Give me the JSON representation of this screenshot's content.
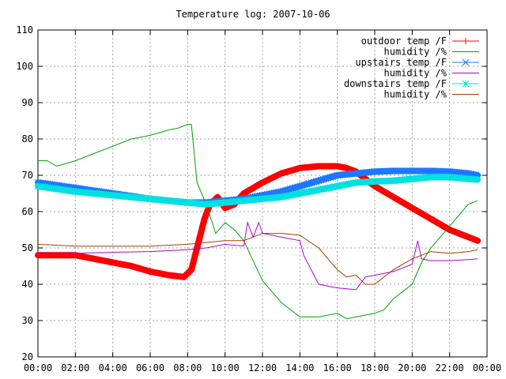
{
  "chart_data": {
    "type": "line",
    "title": "Temperature log: 2007-10-06",
    "xlabel": "",
    "ylabel": "",
    "ylim": [
      20,
      110
    ],
    "xlim": [
      0,
      24
    ],
    "y_ticks": [
      20,
      30,
      40,
      50,
      60,
      70,
      80,
      90,
      100,
      110
    ],
    "x_ticks": [
      "00:00",
      "02:00",
      "04:00",
      "06:00",
      "08:00",
      "10:00",
      "12:00",
      "14:00",
      "16:00",
      "18:00",
      "20:00",
      "22:00",
      "00:00"
    ],
    "grid": true,
    "legend_position": "top-right",
    "series": [
      {
        "name": "outdoor temp /F",
        "color": "#ff0000",
        "marker": "plus",
        "points": [
          [
            0,
            48
          ],
          [
            1,
            48
          ],
          [
            2,
            48
          ],
          [
            3,
            47
          ],
          [
            4,
            46
          ],
          [
            5,
            45
          ],
          [
            6,
            43.5
          ],
          [
            7,
            42.5
          ],
          [
            7.8,
            42
          ],
          [
            8.2,
            44
          ],
          [
            8.5,
            50
          ],
          [
            8.9,
            58
          ],
          [
            9.2,
            62
          ],
          [
            9.6,
            64
          ],
          [
            10,
            61
          ],
          [
            10.5,
            62
          ],
          [
            11,
            65
          ],
          [
            12,
            68
          ],
          [
            13,
            70.5
          ],
          [
            14,
            72
          ],
          [
            15,
            72.5
          ],
          [
            16,
            72.5
          ],
          [
            16.5,
            72
          ],
          [
            17,
            71
          ],
          [
            17.5,
            69
          ],
          [
            18,
            67
          ],
          [
            19,
            64
          ],
          [
            20,
            61
          ],
          [
            21,
            58
          ],
          [
            22,
            55
          ],
          [
            23,
            53
          ],
          [
            23.5,
            52
          ]
        ]
      },
      {
        "name": "humidity /%",
        "color": "#00a000",
        "marker": "none",
        "points": [
          [
            0,
            74
          ],
          [
            0.5,
            74
          ],
          [
            1,
            72.5
          ],
          [
            2,
            74
          ],
          [
            3,
            76
          ],
          [
            4,
            78
          ],
          [
            5,
            80
          ],
          [
            6,
            81
          ],
          [
            7,
            82.5
          ],
          [
            7.5,
            83
          ],
          [
            8,
            84
          ],
          [
            8.2,
            84
          ],
          [
            8.5,
            68
          ],
          [
            9,
            62
          ],
          [
            9.5,
            54
          ],
          [
            10,
            57
          ],
          [
            10.5,
            55
          ],
          [
            11,
            52
          ],
          [
            12,
            41
          ],
          [
            13,
            35
          ],
          [
            14,
            31
          ],
          [
            15,
            31
          ],
          [
            16,
            32
          ],
          [
            16.5,
            30.5
          ],
          [
            17,
            31
          ],
          [
            18,
            32
          ],
          [
            18.5,
            33
          ],
          [
            19,
            36
          ],
          [
            19.5,
            38
          ],
          [
            20,
            40
          ],
          [
            20.5,
            46
          ],
          [
            21,
            50
          ],
          [
            22,
            56
          ],
          [
            23,
            62
          ],
          [
            23.5,
            63
          ]
        ]
      },
      {
        "name": "upstairs temp /F",
        "color": "#1e78ff",
        "marker": "cross",
        "points": [
          [
            0,
            68
          ],
          [
            2,
            66.5
          ],
          [
            4,
            65
          ],
          [
            6,
            63.5
          ],
          [
            8,
            62.5
          ],
          [
            9,
            62.5
          ],
          [
            10,
            63
          ],
          [
            11,
            63.5
          ],
          [
            12,
            64.5
          ],
          [
            13,
            65.5
          ],
          [
            14,
            67
          ],
          [
            15,
            68.5
          ],
          [
            16,
            70
          ],
          [
            17,
            70.5
          ],
          [
            18,
            71
          ],
          [
            19,
            71.2
          ],
          [
            20,
            71.2
          ],
          [
            21,
            71.2
          ],
          [
            22,
            71
          ],
          [
            23,
            70.5
          ],
          [
            23.5,
            70
          ]
        ]
      },
      {
        "name": "humidity /%",
        "color": "#b000d0",
        "marker": "none",
        "points": [
          [
            0,
            48.5
          ],
          [
            2,
            48.5
          ],
          [
            4,
            48.8
          ],
          [
            6,
            49
          ],
          [
            8,
            49.5
          ],
          [
            9,
            50
          ],
          [
            10,
            51
          ],
          [
            11,
            50.5
          ],
          [
            11.2,
            57
          ],
          [
            11.5,
            53
          ],
          [
            11.8,
            57
          ],
          [
            12,
            54
          ],
          [
            13,
            53
          ],
          [
            14,
            52
          ],
          [
            14.2,
            48
          ],
          [
            15,
            40
          ],
          [
            16,
            39
          ],
          [
            17,
            38.5
          ],
          [
            17.5,
            42
          ],
          [
            18,
            42.5
          ],
          [
            19,
            43.5
          ],
          [
            20,
            45.5
          ],
          [
            20.3,
            52
          ],
          [
            20.5,
            47
          ],
          [
            21,
            46.5
          ],
          [
            22,
            46.5
          ],
          [
            23,
            46.8
          ],
          [
            23.5,
            47
          ]
        ]
      },
      {
        "name": "downstairs temp /F",
        "color": "#00e0e0",
        "marker": "star",
        "points": [
          [
            0,
            67
          ],
          [
            2,
            65.5
          ],
          [
            4,
            64.5
          ],
          [
            6,
            63.5
          ],
          [
            8,
            62.5
          ],
          [
            9,
            62
          ],
          [
            10,
            62.5
          ],
          [
            11,
            63
          ],
          [
            12,
            63.5
          ],
          [
            13,
            64
          ],
          [
            14,
            65
          ],
          [
            15,
            66
          ],
          [
            16,
            67
          ],
          [
            17,
            68
          ],
          [
            18,
            68.3
          ],
          [
            19,
            68.5
          ],
          [
            20,
            69
          ],
          [
            21,
            69.5
          ],
          [
            22,
            69.5
          ],
          [
            23,
            69
          ],
          [
            23.5,
            68.8
          ]
        ]
      },
      {
        "name": "humidity /%",
        "color": "#a04000",
        "marker": "none",
        "points": [
          [
            0,
            51
          ],
          [
            2,
            50.5
          ],
          [
            4,
            50.5
          ],
          [
            6,
            50.5
          ],
          [
            8,
            51
          ],
          [
            9,
            51.5
          ],
          [
            10,
            52
          ],
          [
            11,
            52
          ],
          [
            12,
            54
          ],
          [
            13,
            54
          ],
          [
            14,
            53.5
          ],
          [
            15,
            50
          ],
          [
            15.5,
            47
          ],
          [
            16,
            44
          ],
          [
            16.5,
            42
          ],
          [
            17,
            42.5
          ],
          [
            17.5,
            40
          ],
          [
            18,
            40
          ],
          [
            19,
            44
          ],
          [
            20,
            47
          ],
          [
            21,
            49
          ],
          [
            22,
            48.5
          ],
          [
            23,
            49
          ],
          [
            23.5,
            49.5
          ]
        ]
      }
    ]
  }
}
